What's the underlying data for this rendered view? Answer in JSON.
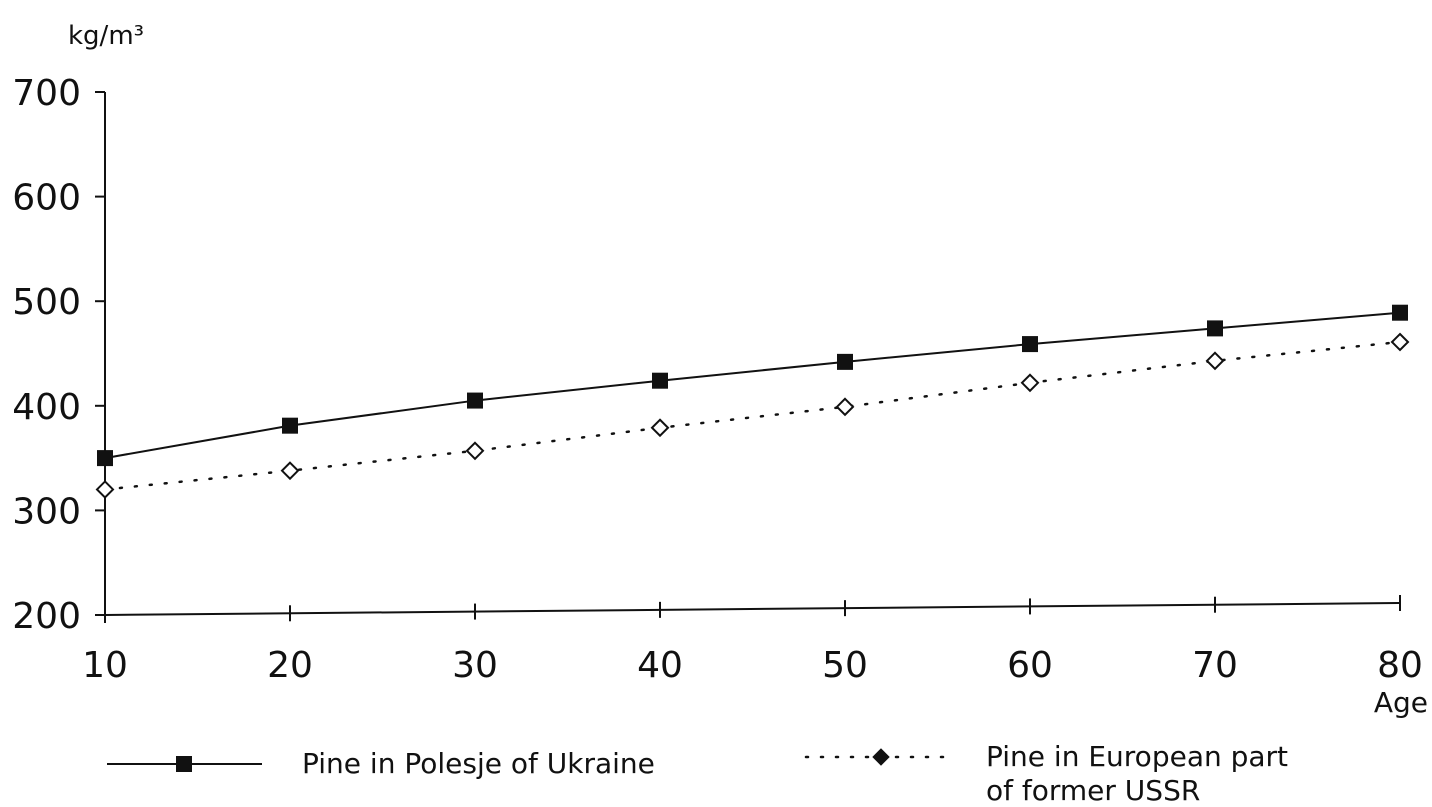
{
  "chart_data": {
    "type": "line",
    "title": "",
    "ylabel": "kg/m³",
    "xlabel": "Age",
    "ylim": [
      200,
      700
    ],
    "xlim": [
      10,
      80
    ],
    "yticks": [
      "200",
      "300",
      "400",
      "500",
      "600",
      "700"
    ],
    "xticks": [
      "10",
      "20",
      "30",
      "40",
      "50",
      "60",
      "70",
      "80"
    ],
    "x": [
      10,
      20,
      30,
      40,
      50,
      60,
      70,
      80
    ],
    "grid": false,
    "legend_position": "bottom",
    "series": [
      {
        "name": "Pine in Polesje of Ukraine",
        "legend_lines": [
          "Pine in Polesje of Ukraine"
        ],
        "line_style": "solid",
        "marker": "filled-square",
        "color": "#111111",
        "values": [
          350,
          381,
          405,
          424,
          442,
          459,
          474,
          489
        ]
      },
      {
        "name": "Pine in European part of former USSR",
        "legend_lines": [
          "Pine in European part",
          "of former USSR"
        ],
        "line_style": "dotted",
        "marker": "diamond",
        "color": "#111111",
        "values": [
          320,
          338,
          357,
          379,
          399,
          422,
          443,
          461
        ]
      }
    ]
  }
}
